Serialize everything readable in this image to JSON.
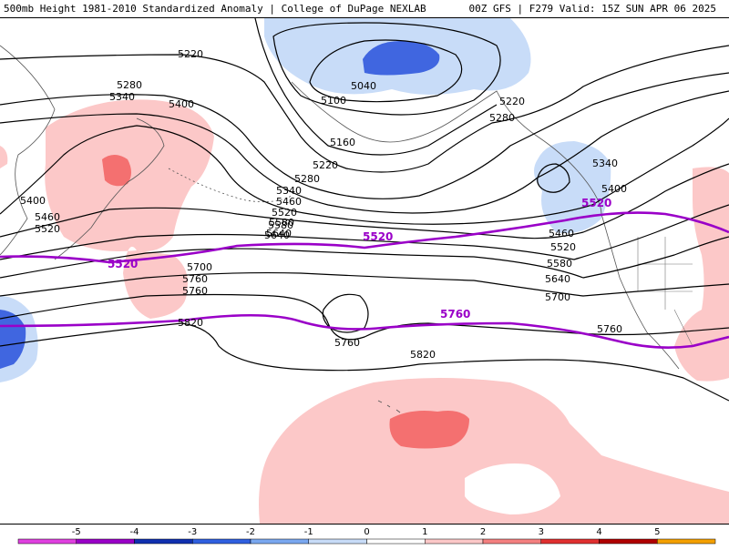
{
  "header": {
    "title_left": "500mb Height 1981-2010 Standardized Anomaly | College of DuPage NEXLAB",
    "title_right": "00Z GFS | F279 Valid: 15Z SUN APR 06 2025"
  },
  "map": {
    "contour_labels": [
      "5220",
      "5280",
      "5340",
      "5400",
      "5460",
      "5520",
      "5580",
      "5640",
      "5700",
      "5760",
      "5820",
      "5040",
      "5100",
      "5160",
      "5220",
      "5280",
      "5340",
      "5400",
      "5460",
      "5520",
      "5580",
      "5640",
      "5700",
      "5760",
      "5820",
      "5760",
      "5220",
      "5280",
      "5340",
      "5400",
      "5460",
      "5520",
      "5580",
      "5640",
      "5700",
      "5760"
    ],
    "highlight_labels": [
      "5520",
      "5520",
      "5520",
      "5760"
    ],
    "highlight_color": "#9a00c8"
  },
  "colorbar": {
    "ticks": [
      "-5",
      "-4",
      "-3",
      "-2",
      "-1",
      "0",
      "1",
      "2",
      "3",
      "4",
      "5"
    ],
    "colors": [
      "#e040e0",
      "#9a00c8",
      "#1030b0",
      "#3060e0",
      "#7aa8f0",
      "#c8dcf8",
      "#ffffff",
      "#fcc8c8",
      "#f48080",
      "#e03030",
      "#b00000",
      "#f4a000"
    ]
  }
}
